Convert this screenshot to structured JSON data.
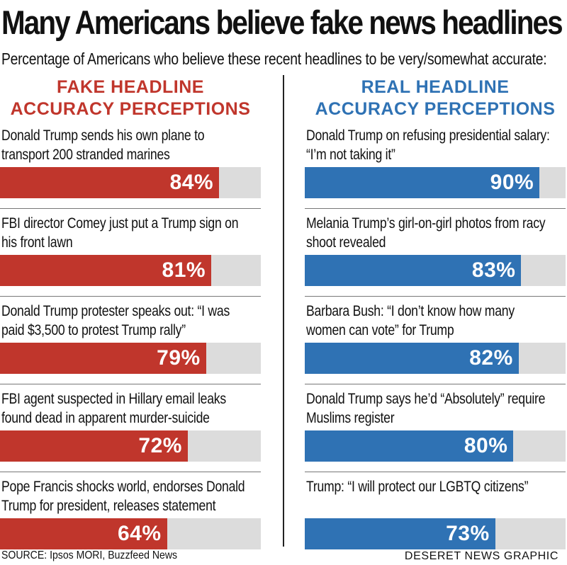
{
  "title": "Many Americans believe fake news headlines",
  "subtitle": "Percentage of Americans who believe these recent headlines to be very/somewhat accurate:",
  "colors": {
    "fake": "#c0362c",
    "real": "#2f72b4",
    "track": "#dcdcdc"
  },
  "chart_data": [
    {
      "type": "bar",
      "title": "FAKE HEADLINE ACCURACY PERCEPTIONS",
      "title_lines": [
        "FAKE HEADLINE",
        "ACCURACY PERCEPTIONS"
      ],
      "categories": [
        "Donald Trump sends his own plane to transport 200 stranded marines",
        "FBI director Comey just put a Trump sign on his front lawn",
        "Donald Trump protester speaks out: “I was paid $3,500 to protest Trump rally”",
        "FBI agent suspected in Hillary email leaks found dead in apparent murder-suicide",
        "Pope Francis shocks world, endorses Donald Trump for president, releases statement"
      ],
      "values": [
        84,
        81,
        79,
        72,
        64
      ],
      "labels": [
        "84%",
        "81%",
        "79%",
        "72%",
        "64%"
      ],
      "ylim": [
        0,
        100
      ],
      "orientation": "horizontal"
    },
    {
      "type": "bar",
      "title": "REAL HEADLINE ACCURACY PERCEPTIONS",
      "title_lines": [
        "REAL HEADLINE",
        "ACCURACY PERCEPTIONS"
      ],
      "categories": [
        "Donald Trump on refusing presidential salary: “I’m not taking it”",
        "Melania Trump’s girl-on-girl photos from racy shoot revealed",
        "Barbara Bush: “I don’t know how many women can vote” for Trump",
        "Donald Trump says he’d “Absolutely” require Muslims register",
        "Trump: “I will protect our LGBTQ citizens”"
      ],
      "values": [
        90,
        83,
        82,
        80,
        73
      ],
      "labels": [
        "90%",
        "83%",
        "82%",
        "80%",
        "73%"
      ],
      "ylim": [
        0,
        100
      ],
      "orientation": "horizontal"
    }
  ],
  "source": "SOURCE: Ipsos MORI, Buzzfeed News",
  "credit": "DESERET NEWS GRAPHIC"
}
